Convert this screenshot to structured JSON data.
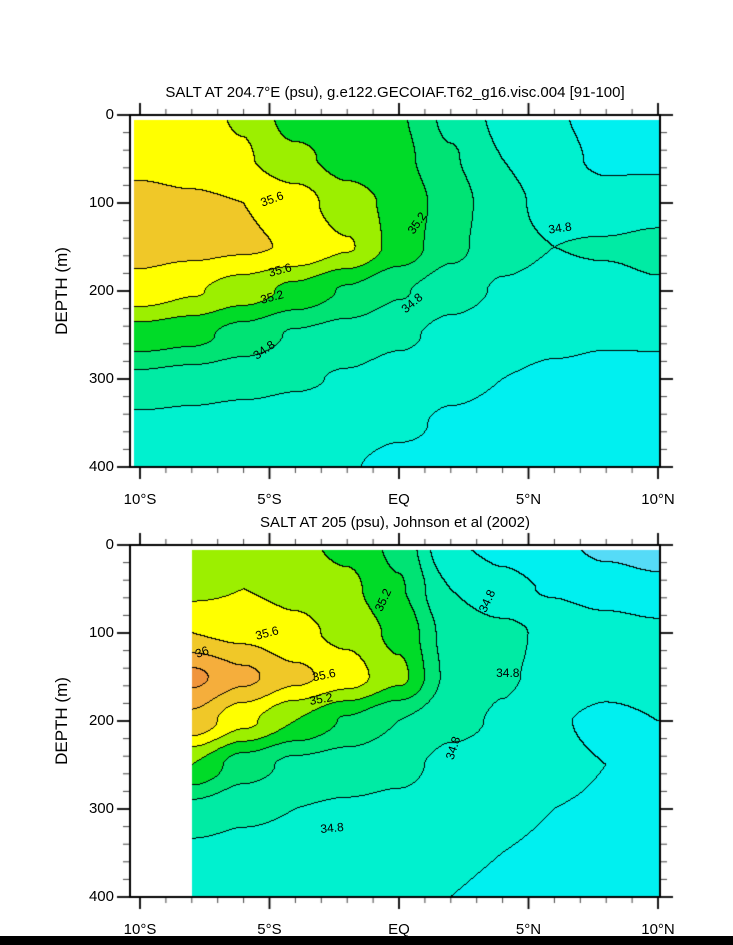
{
  "page": {
    "background": "#ffffff",
    "top_bar_color": "#000000",
    "bottom_bar_color": "#000000"
  },
  "chart_data": [
    {
      "type": "contour",
      "title": "SALT AT 204.7°E (psu), g.e122.GECOIAF.T62_g16.visc.004 [91-100]",
      "ylabel": "DEPTH (m)",
      "units": "psu",
      "x_range": [
        -10,
        10
      ],
      "y_range": [
        0,
        400
      ],
      "x_minor_step_deg": 1,
      "y_minor_step_m": 20,
      "x": [
        -10,
        -8,
        -6,
        -4,
        -2,
        0,
        2,
        4,
        6,
        8,
        10
      ],
      "y": [
        0,
        50,
        100,
        150,
        200,
        250,
        300,
        350,
        400
      ],
      "values": [
        [
          35.7,
          35.66,
          35.58,
          35.3,
          35.26,
          35.22,
          34.95,
          34.75,
          34.62,
          34.52,
          34.5
        ],
        [
          35.74,
          35.7,
          35.62,
          35.45,
          35.32,
          35.26,
          35.02,
          34.8,
          34.66,
          34.56,
          34.55
        ],
        [
          35.86,
          35.83,
          35.8,
          35.7,
          35.48,
          35.35,
          35.1,
          34.86,
          34.73,
          34.68,
          34.72
        ],
        [
          35.88,
          35.86,
          35.83,
          35.78,
          35.62,
          35.33,
          35.06,
          34.86,
          34.8,
          34.82,
          34.85
        ],
        [
          35.72,
          35.62,
          35.5,
          35.35,
          35.18,
          35.02,
          34.88,
          34.78,
          34.74,
          34.74,
          34.78
        ],
        [
          35.32,
          35.26,
          35.12,
          34.98,
          34.92,
          34.84,
          34.74,
          34.68,
          34.64,
          34.62,
          34.62
        ],
        [
          34.96,
          34.92,
          34.88,
          34.83,
          34.78,
          34.71,
          34.64,
          34.6,
          34.57,
          34.55,
          34.56
        ],
        [
          34.76,
          34.74,
          34.71,
          34.69,
          34.66,
          34.63,
          34.58,
          34.56,
          34.54,
          34.52,
          34.53
        ],
        [
          34.68,
          34.66,
          34.64,
          34.62,
          34.61,
          34.56,
          34.56,
          34.55,
          34.53,
          34.51,
          34.52
        ]
      ],
      "levels": [
        34.2,
        34.4,
        34.6,
        34.8,
        35.0,
        35.2,
        35.4,
        35.6,
        35.8,
        36.0,
        36.2,
        36.4
      ],
      "labeled_levels": [
        34.8,
        35.2,
        35.6
      ],
      "band_colors": [
        "#55DBF7",
        "#00F0F0",
        "#00F1CF",
        "#00EBA4",
        "#00E374",
        "#00DB28",
        "#9CEF00",
        "#FFFF00",
        "#F0C828",
        "#F5AE3C",
        "#F0953C"
      ],
      "x_ticks": [
        {
          "v": -10,
          "label": "10°S"
        },
        {
          "v": -5,
          "label": "5°S"
        },
        {
          "v": 0,
          "label": "EQ"
        },
        {
          "v": 5,
          "label": "5°N"
        },
        {
          "v": 10,
          "label": "10°N"
        }
      ],
      "y_ticks": [
        {
          "v": 0,
          "label": "0"
        },
        {
          "v": 100,
          "label": "100"
        },
        {
          "v": 200,
          "label": "200"
        },
        {
          "v": 300,
          "label": "300"
        },
        {
          "v": 400,
          "label": "400"
        }
      ],
      "contour_labels": [
        {
          "text": "35.6",
          "lat": -4.9,
          "depth": 96,
          "rot": -20
        },
        {
          "text": "35.6",
          "lat": -4.6,
          "depth": 176,
          "rot": -15
        },
        {
          "text": "35.2",
          "lat": -4.9,
          "depth": 207,
          "rot": -15
        },
        {
          "text": "34.8",
          "lat": -5.2,
          "depth": 267,
          "rot": -35
        },
        {
          "text": "35.2",
          "lat": 0.7,
          "depth": 123,
          "rot": -55
        },
        {
          "text": "34.8",
          "lat": 6.2,
          "depth": 128,
          "rot": -8
        },
        {
          "text": "34.8",
          "lat": 0.5,
          "depth": 214,
          "rot": -40
        }
      ]
    },
    {
      "type": "contour",
      "title": "SALT AT 205 (psu), Johnson et al (2002)",
      "ylabel": "DEPTH (m)",
      "units": "psu",
      "x_range": [
        -10,
        10
      ],
      "y_range": [
        0,
        400
      ],
      "x_data_start": -8,
      "x_minor_step_deg": 1,
      "y_minor_step_m": 20,
      "x": [
        -8,
        -6,
        -4,
        -2,
        0,
        2,
        4,
        6,
        8,
        10
      ],
      "y": [
        0,
        50,
        100,
        150,
        200,
        250,
        300,
        350,
        400
      ],
      "values": [
        [
          35.45,
          35.5,
          35.45,
          35.35,
          35.15,
          34.62,
          34.55,
          34.45,
          34.35,
          34.3
        ],
        [
          35.55,
          35.6,
          35.55,
          35.45,
          35.22,
          34.8,
          34.65,
          34.58,
          34.5,
          34.45
        ],
        [
          35.8,
          35.75,
          35.65,
          35.55,
          35.35,
          34.92,
          34.85,
          34.75,
          34.7,
          34.65
        ],
        [
          36.25,
          36.05,
          35.85,
          35.7,
          35.45,
          34.95,
          34.82,
          34.75,
          34.68,
          34.7
        ],
        [
          35.95,
          35.65,
          35.4,
          35.18,
          35.0,
          34.85,
          34.78,
          34.62,
          34.55,
          34.6
        ],
        [
          35.4,
          35.1,
          34.95,
          34.9,
          34.85,
          34.75,
          34.72,
          34.65,
          34.6,
          34.58
        ],
        [
          34.95,
          34.85,
          34.8,
          34.78,
          34.76,
          34.7,
          34.66,
          34.6,
          34.58,
          34.56
        ],
        [
          34.75,
          34.72,
          34.7,
          34.68,
          34.66,
          34.62,
          34.6,
          34.56,
          34.55,
          34.54
        ],
        [
          34.7,
          34.68,
          34.66,
          34.64,
          34.62,
          34.6,
          34.58,
          34.55,
          34.54,
          34.53
        ]
      ],
      "levels": [
        34.2,
        34.4,
        34.6,
        34.8,
        35.0,
        35.2,
        35.4,
        35.6,
        35.8,
        36.0,
        36.2,
        36.4
      ],
      "labeled_levels": [
        34.8,
        35.2,
        35.6,
        36
      ],
      "band_colors": [
        "#55DBF7",
        "#00F0F0",
        "#00F1CF",
        "#00EBA4",
        "#00E374",
        "#00DB28",
        "#9CEF00",
        "#FFFF00",
        "#F0C828",
        "#F5AE3C",
        "#F0953C"
      ],
      "x_ticks": [
        {
          "v": -10,
          "label": "10°S"
        },
        {
          "v": -5,
          "label": "5°S"
        },
        {
          "v": 0,
          "label": "EQ"
        },
        {
          "v": 5,
          "label": "5°N"
        },
        {
          "v": 10,
          "label": "10°N"
        }
      ],
      "y_ticks": [
        {
          "v": 0,
          "label": "0"
        },
        {
          "v": 100,
          "label": "100"
        },
        {
          "v": 200,
          "label": "200"
        },
        {
          "v": 300,
          "label": "300"
        },
        {
          "v": 400,
          "label": "400"
        }
      ],
      "contour_labels": [
        {
          "text": "35.6",
          "lat": -5.1,
          "depth": 100,
          "rot": -15
        },
        {
          "text": "36",
          "lat": -7.6,
          "depth": 122,
          "rot": -20
        },
        {
          "text": "35.6",
          "lat": -2.9,
          "depth": 148,
          "rot": -12
        },
        {
          "text": "35.2",
          "lat": -3.0,
          "depth": 175,
          "rot": -10
        },
        {
          "text": "35.2",
          "lat": -0.6,
          "depth": 62,
          "rot": -65
        },
        {
          "text": "34.8",
          "lat": 3.4,
          "depth": 64,
          "rot": -65
        },
        {
          "text": "34.8",
          "lat": 4.2,
          "depth": 145,
          "rot": 0
        },
        {
          "text": "34.8",
          "lat": 2.1,
          "depth": 231,
          "rot": -72
        },
        {
          "text": "34.8",
          "lat": -2.6,
          "depth": 322,
          "rot": -5
        }
      ]
    }
  ]
}
